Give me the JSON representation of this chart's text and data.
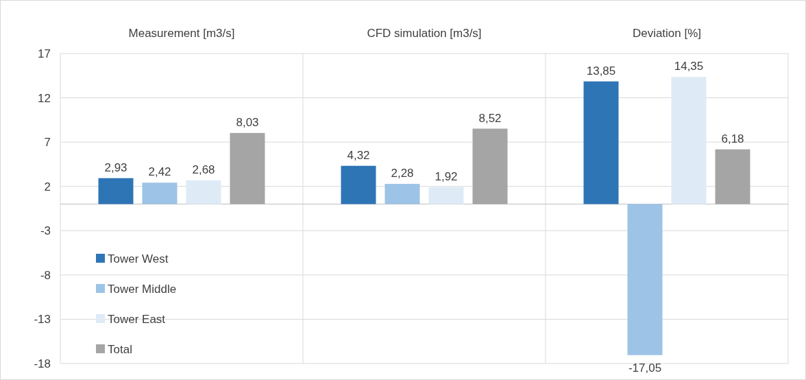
{
  "chart_data": {
    "type": "bar",
    "categories": [
      "Measurement [m3/s]",
      "CFD simulation [m3/s]",
      "Deviation [%]"
    ],
    "series": [
      {
        "name": "Tower West",
        "color": "#2e75b6",
        "values": [
          2.93,
          4.32,
          13.85
        ],
        "value_labels": [
          "2,93",
          "4,32",
          "13,85"
        ]
      },
      {
        "name": "Tower Middle",
        "color": "#9dc3e6",
        "values": [
          2.42,
          2.28,
          -17.05
        ],
        "value_labels": [
          "2,42",
          "2,28",
          "-17,05"
        ]
      },
      {
        "name": "Tower East",
        "color": "#deebf7",
        "values": [
          2.68,
          1.92,
          14.35
        ],
        "value_labels": [
          "2,68",
          "1,92",
          "14,35"
        ]
      },
      {
        "name": "Total",
        "color": "#a5a5a5",
        "values": [
          8.03,
          8.52,
          6.18
        ],
        "value_labels": [
          "8,03",
          "8,52",
          "6,18"
        ]
      }
    ],
    "ylim": [
      -18,
      17
    ],
    "yticks": [
      -18,
      -13,
      -8,
      -3,
      2,
      7,
      12,
      17
    ],
    "grid": "y",
    "legend": "bottom left"
  }
}
